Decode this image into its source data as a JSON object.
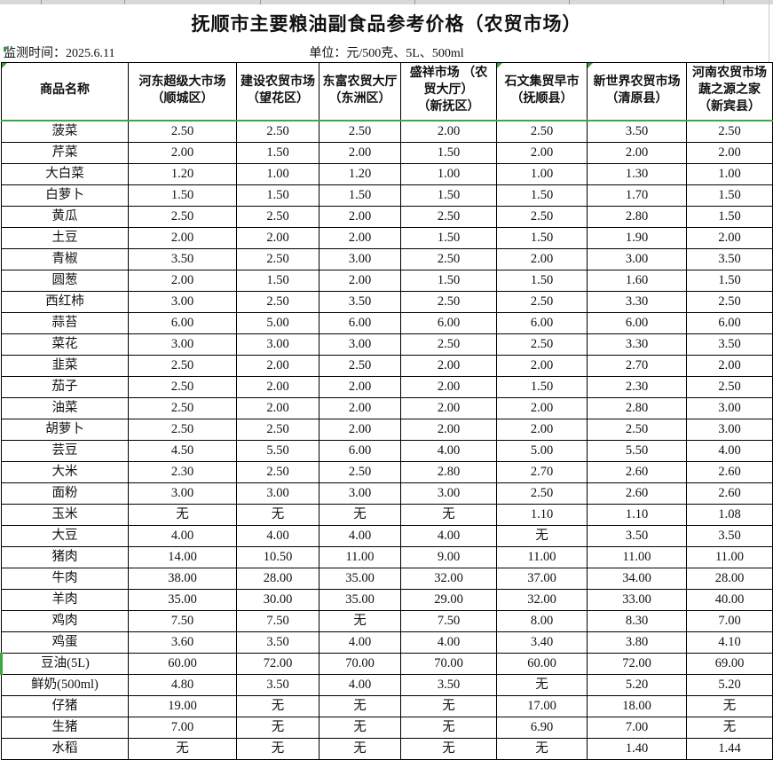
{
  "title": "抚顺市主要粮油副食品参考价格（农贸市场）",
  "meta": {
    "monitor_label": "监测时间：2025.6.11",
    "unit_label": "单位：元/500克、5L、500ml"
  },
  "colors": {
    "accent_green": "#3BA93F",
    "border_black": "#000000",
    "strip_gray": "#D9D9D9"
  },
  "table": {
    "name_header": "商品名称",
    "market_headers": [
      "河东超级大市场\n（顺城区）",
      "建设农贸市场\n（望花区）",
      "东富农贸大厅\n（东洲区）",
      "盛祥市场 （农\n贸大厅）\n（新抚区）",
      "石文集贸早市\n（抚顺县）",
      "新世界农贸市场\n（清原县）",
      "河南农贸市场\n蔬之源之家\n（新宾县）"
    ],
    "rows": [
      {
        "name": "菠菜",
        "values": [
          "2.50",
          "2.50",
          "2.50",
          "2.00",
          "2.50",
          "3.50",
          "2.50"
        ]
      },
      {
        "name": "芹菜",
        "values": [
          "2.00",
          "1.50",
          "2.00",
          "1.50",
          "2.00",
          "2.00",
          "2.00"
        ]
      },
      {
        "name": "大白菜",
        "values": [
          "1.20",
          "1.00",
          "1.20",
          "1.00",
          "1.00",
          "1.30",
          "1.00"
        ]
      },
      {
        "name": "白萝卜",
        "values": [
          "1.50",
          "1.50",
          "1.50",
          "1.50",
          "1.50",
          "1.70",
          "1.50"
        ]
      },
      {
        "name": "黄瓜",
        "values": [
          "2.50",
          "2.50",
          "2.00",
          "2.50",
          "2.50",
          "2.80",
          "1.50"
        ]
      },
      {
        "name": "土豆",
        "values": [
          "2.00",
          "2.00",
          "2.00",
          "1.50",
          "1.50",
          "1.90",
          "2.00"
        ]
      },
      {
        "name": "青椒",
        "values": [
          "3.50",
          "2.50",
          "3.00",
          "2.50",
          "2.00",
          "3.00",
          "3.50"
        ]
      },
      {
        "name": "圆葱",
        "values": [
          "2.00",
          "1.50",
          "2.00",
          "1.50",
          "1.50",
          "1.60",
          "1.50"
        ]
      },
      {
        "name": "西红柿",
        "values": [
          "3.00",
          "2.50",
          "3.50",
          "2.50",
          "2.50",
          "3.30",
          "2.50"
        ]
      },
      {
        "name": "蒜苔",
        "values": [
          "6.00",
          "5.00",
          "6.00",
          "6.00",
          "6.00",
          "6.00",
          "6.00"
        ]
      },
      {
        "name": "菜花",
        "values": [
          "3.00",
          "3.00",
          "3.00",
          "2.50",
          "2.50",
          "3.30",
          "3.50"
        ]
      },
      {
        "name": "韭菜",
        "values": [
          "2.50",
          "2.00",
          "2.50",
          "2.00",
          "2.00",
          "2.70",
          "2.00"
        ]
      },
      {
        "name": "茄子",
        "values": [
          "2.50",
          "2.00",
          "2.00",
          "2.00",
          "1.50",
          "2.30",
          "2.50"
        ]
      },
      {
        "name": "油菜",
        "values": [
          "2.50",
          "2.00",
          "2.00",
          "2.00",
          "2.00",
          "2.80",
          "3.00"
        ]
      },
      {
        "name": "胡萝卜",
        "values": [
          "2.50",
          "2.50",
          "2.00",
          "2.00",
          "2.00",
          "2.50",
          "3.00"
        ]
      },
      {
        "name": "芸豆",
        "values": [
          "4.50",
          "5.50",
          "6.00",
          "4.00",
          "5.00",
          "5.50",
          "4.00"
        ]
      },
      {
        "name": "大米",
        "values": [
          "2.30",
          "2.50",
          "2.50",
          "2.80",
          "2.70",
          "2.60",
          "2.60"
        ]
      },
      {
        "name": "面粉",
        "values": [
          "3.00",
          "3.00",
          "3.00",
          "3.00",
          "2.50",
          "2.60",
          "2.60"
        ]
      },
      {
        "name": "玉米",
        "values": [
          "无",
          "无",
          "无",
          "无",
          "1.10",
          "1.10",
          "1.08"
        ]
      },
      {
        "name": "大豆",
        "values": [
          "4.00",
          "4.00",
          "4.00",
          "4.00",
          "无",
          "3.50",
          "3.50"
        ]
      },
      {
        "name": "猪肉",
        "values": [
          "14.00",
          "10.50",
          "11.00",
          "9.00",
          "11.00",
          "11.00",
          "11.00"
        ]
      },
      {
        "name": "牛肉",
        "values": [
          "38.00",
          "28.00",
          "35.00",
          "32.00",
          "37.00",
          "34.00",
          "28.00"
        ]
      },
      {
        "name": "羊肉",
        "values": [
          "35.00",
          "30.00",
          "35.00",
          "29.00",
          "32.00",
          "33.00",
          "40.00"
        ]
      },
      {
        "name": "鸡肉",
        "values": [
          "7.50",
          "7.50",
          "无",
          "7.50",
          "8.00",
          "8.30",
          "7.00"
        ]
      },
      {
        "name": "鸡蛋",
        "values": [
          "3.60",
          "3.50",
          "4.00",
          "4.00",
          "3.40",
          "3.80",
          "4.10"
        ]
      },
      {
        "name": "豆油(5L)",
        "green_left": true,
        "values": [
          "60.00",
          "72.00",
          "70.00",
          "70.00",
          "60.00",
          "72.00",
          "69.00"
        ]
      },
      {
        "name": "鲜奶(500ml)",
        "values": [
          "4.80",
          "3.50",
          "4.00",
          "3.50",
          "无",
          "5.20",
          "5.20"
        ]
      },
      {
        "name": "仔猪",
        "values": [
          "19.00",
          "无",
          "无",
          "无",
          "17.00",
          "18.00",
          "无"
        ]
      },
      {
        "name": "生猪",
        "values": [
          "7.00",
          "无",
          "无",
          "无",
          "6.90",
          "7.00",
          "无"
        ]
      },
      {
        "name": "水稻",
        "values": [
          "无",
          "无",
          "无",
          "无",
          "无",
          "1.40",
          "1.44"
        ]
      }
    ]
  }
}
